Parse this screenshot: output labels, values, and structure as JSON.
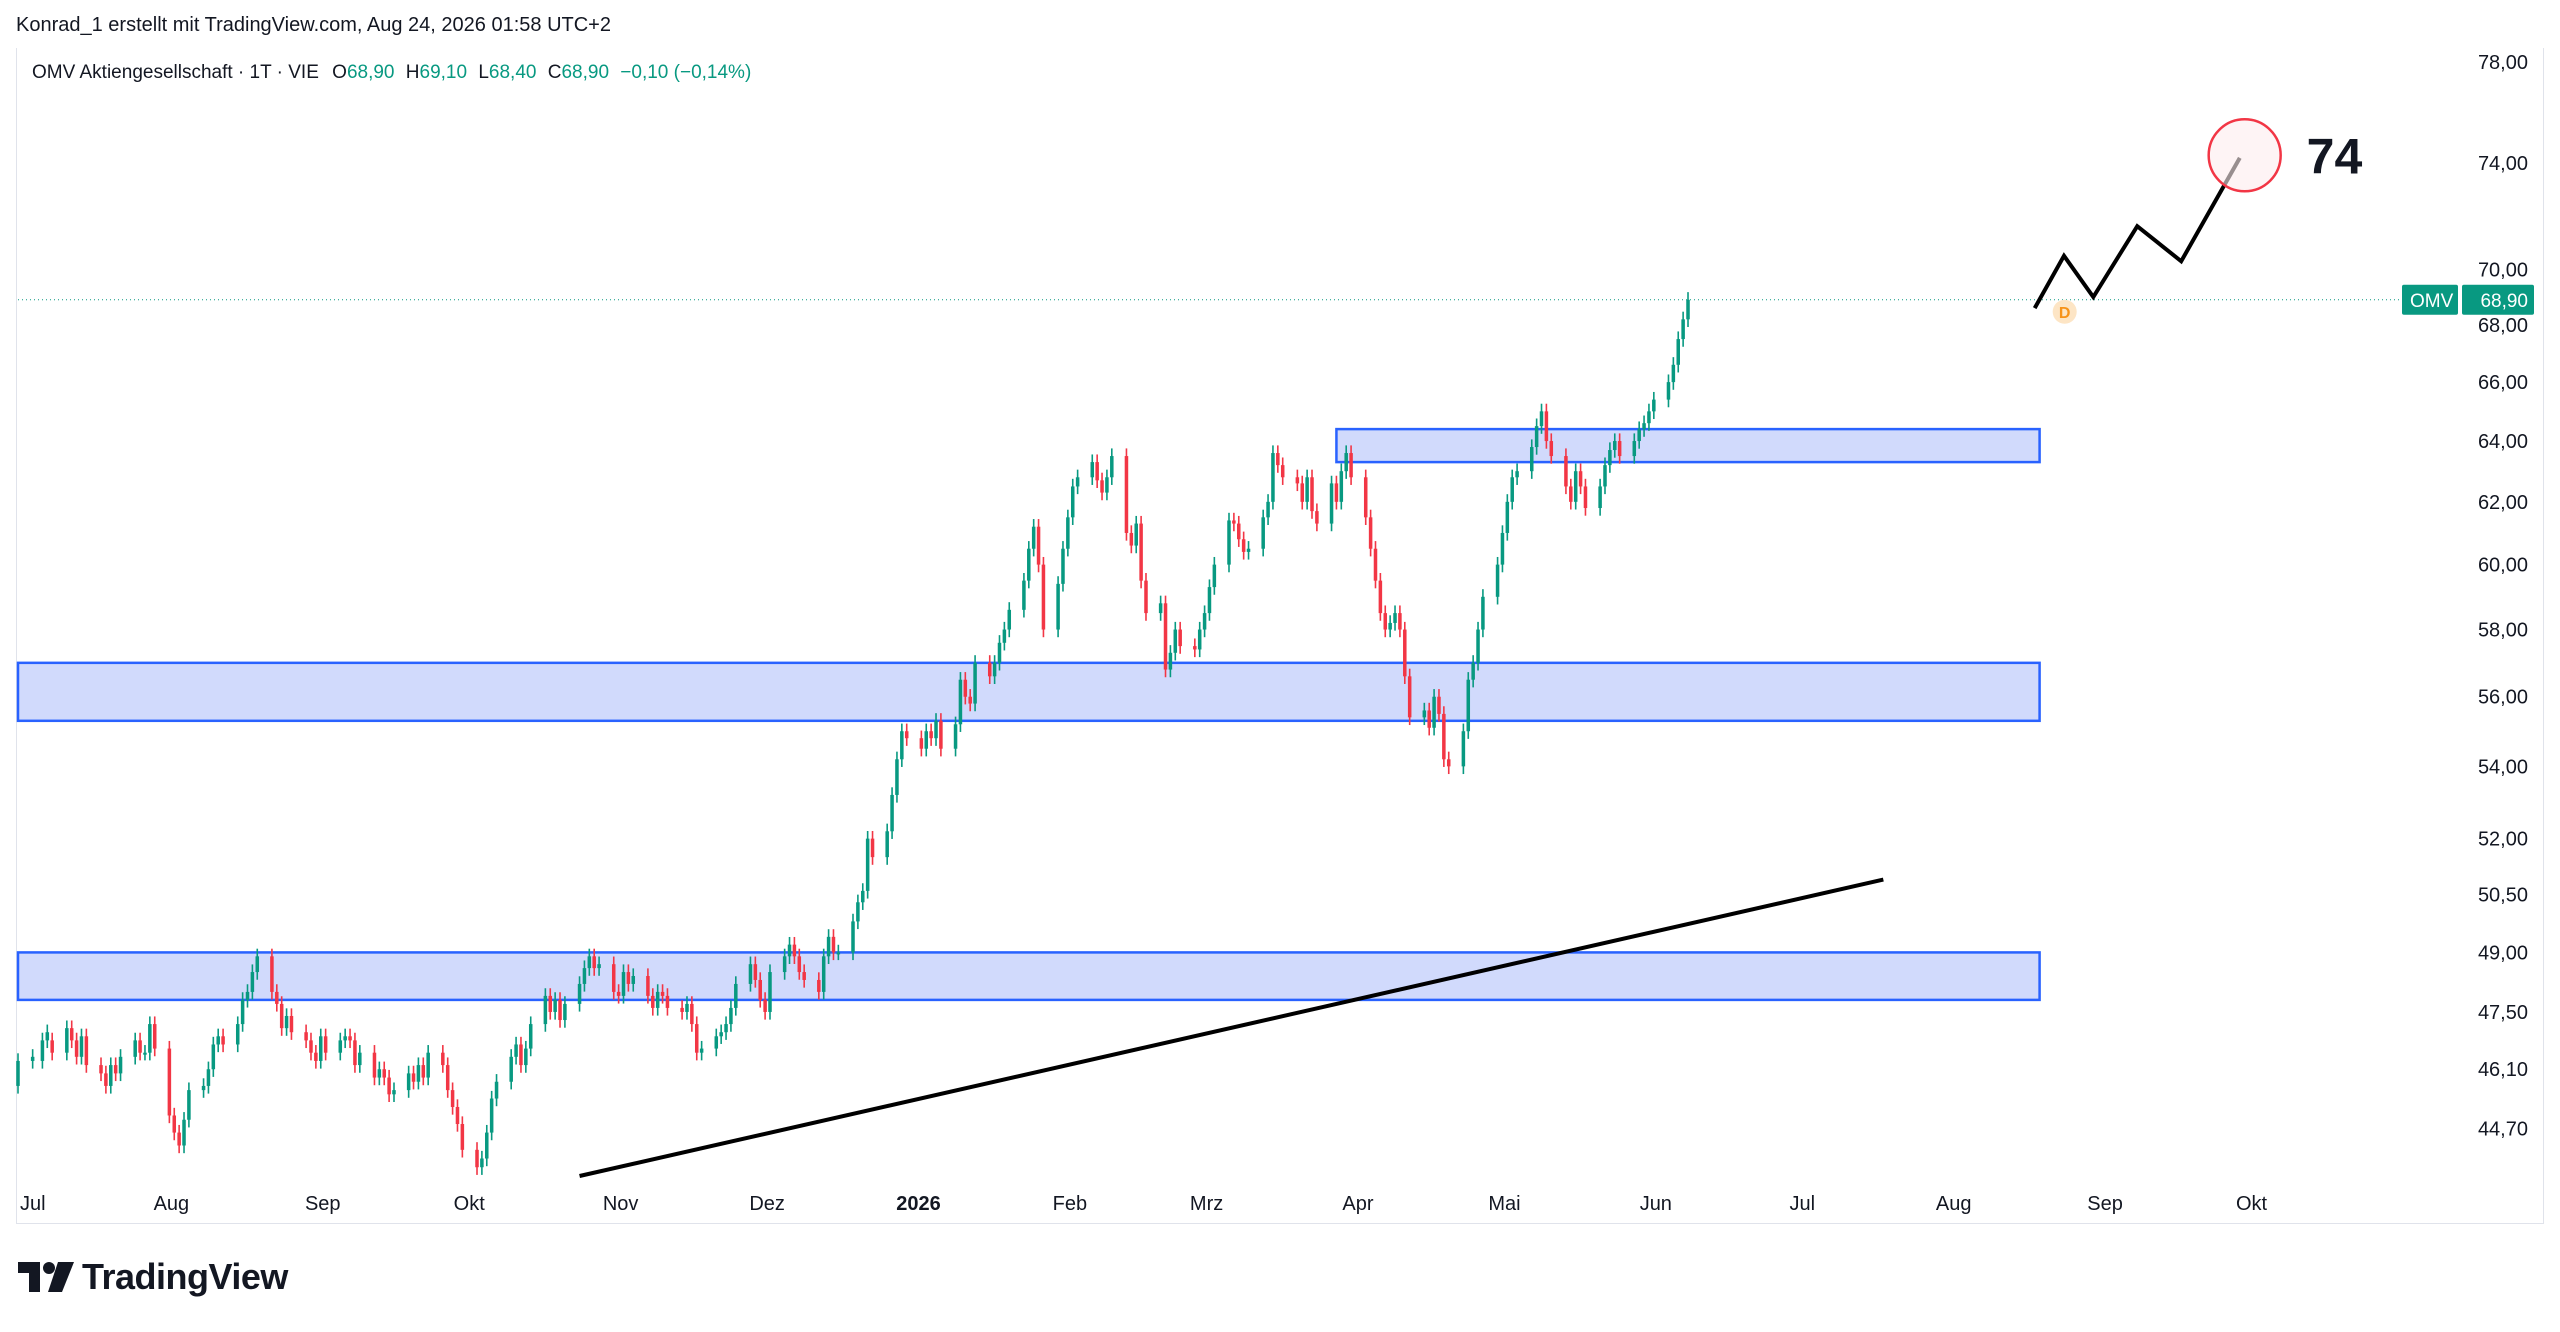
{
  "header": {
    "attribution": "Konrad_1 erstellt mit TradingView.com, Aug 24, 2026 01:58 UTC+2"
  },
  "legend": {
    "symbol": "OMV Aktiengesellschaft · 1T · VIE",
    "o_label": "O",
    "o_value": "68,90",
    "h_label": "H",
    "h_value": "69,10",
    "l_label": "L",
    "l_value": "68,40",
    "c_label": "C",
    "c_value": "68,90",
    "change": "−0,10 (−0,14%)"
  },
  "price_tag": {
    "symbol": "OMV",
    "value": "68,90"
  },
  "annotation": {
    "target_text": "74"
  },
  "brand": {
    "name": "TradingView"
  },
  "colors": {
    "up": "#089981",
    "down": "#f23645",
    "zone_fill": "#c9d4fb",
    "zone_stroke": "#2962ff",
    "trend": "#000000",
    "target_circle": "#f23645"
  },
  "chart_data": {
    "type": "candlestick",
    "scale": "log",
    "ylim": [
      43.6,
      78.5
    ],
    "y_ticks": [
      {
        "v": 78.0,
        "label": "78,00"
      },
      {
        "v": 74.0,
        "label": "74,00"
      },
      {
        "v": 70.0,
        "label": "70,00"
      },
      {
        "v": 68.0,
        "label": "68,00"
      },
      {
        "v": 66.0,
        "label": "66,00"
      },
      {
        "v": 64.0,
        "label": "64,00"
      },
      {
        "v": 62.0,
        "label": "62,00"
      },
      {
        "v": 60.0,
        "label": "60,00"
      },
      {
        "v": 58.0,
        "label": "58,00"
      },
      {
        "v": 56.0,
        "label": "56,00"
      },
      {
        "v": 54.0,
        "label": "54,00"
      },
      {
        "v": 52.0,
        "label": "52,00"
      },
      {
        "v": 50.5,
        "label": "50,50"
      },
      {
        "v": 49.0,
        "label": "49,00"
      },
      {
        "v": 47.5,
        "label": "47,50"
      },
      {
        "v": 46.1,
        "label": "46,10"
      },
      {
        "v": 44.7,
        "label": "44,70"
      }
    ],
    "x_ticks": [
      {
        "d": 0,
        "label": "Jul"
      },
      {
        "d": 31,
        "label": "Aug"
      },
      {
        "d": 62,
        "label": "Sep"
      },
      {
        "d": 92,
        "label": "Okt"
      },
      {
        "d": 123,
        "label": "Nov"
      },
      {
        "d": 153,
        "label": "Dez"
      },
      {
        "d": 184,
        "label": "2026",
        "bold": true
      },
      {
        "d": 215,
        "label": "Feb"
      },
      {
        "d": 243,
        "label": "Mrz"
      },
      {
        "d": 274,
        "label": "Apr"
      },
      {
        "d": 304,
        "label": "Mai"
      },
      {
        "d": 335,
        "label": "Jun"
      },
      {
        "d": 365,
        "label": "Jul"
      },
      {
        "d": 396,
        "label": "Aug"
      },
      {
        "d": 427,
        "label": "Sep"
      },
      {
        "d": 457,
        "label": "Okt"
      }
    ],
    "x_domain": [
      0,
      496
    ],
    "zones": [
      {
        "d0": 0,
        "d1": 414,
        "lo": 55.3,
        "hi": 57.0
      },
      {
        "d0": 0,
        "d1": 414,
        "lo": 47.8,
        "hi": 49.0
      },
      {
        "d0": 270,
        "d1": 414,
        "lo": 63.3,
        "hi": 64.4
      }
    ],
    "trend_line": [
      {
        "d": 115,
        "v": 43.6
      },
      {
        "d": 382,
        "v": 50.9
      }
    ],
    "projection": [
      {
        "d": 413,
        "v": 68.6
      },
      {
        "d": 419,
        "v": 70.5
      },
      {
        "d": 425,
        "v": 69.0
      },
      {
        "d": 434,
        "v": 71.6
      },
      {
        "d": 443,
        "v": 70.3
      },
      {
        "d": 455,
        "v": 74.2
      }
    ],
    "target_circle": {
      "d": 456,
      "v": 74.3
    },
    "current_price": 68.9,
    "candles": [
      [
        0,
        45.7,
        46.3
      ],
      [
        3,
        46.3,
        46.4
      ],
      [
        5,
        46.3,
        46.8
      ],
      [
        6,
        46.8,
        47.0
      ],
      [
        7,
        46.8,
        46.5
      ],
      [
        10,
        46.5,
        47.1
      ],
      [
        11,
        47.1,
        46.8
      ],
      [
        12,
        46.8,
        46.4
      ],
      [
        13,
        46.4,
        46.9
      ],
      [
        14,
        46.9,
        46.2
      ],
      [
        17,
        46.2,
        46.0
      ],
      [
        18,
        46.0,
        45.7
      ],
      [
        19,
        45.7,
        46.2
      ],
      [
        20,
        46.2,
        46.0
      ],
      [
        21,
        46.0,
        46.4
      ],
      [
        24,
        46.4,
        46.8
      ],
      [
        25,
        46.8,
        46.5
      ],
      [
        26,
        46.5,
        46.5
      ],
      [
        27,
        46.5,
        47.2
      ],
      [
        28,
        47.2,
        46.6
      ],
      [
        31,
        46.6,
        45.0
      ],
      [
        32,
        45.0,
        44.6
      ],
      [
        33,
        44.6,
        44.3
      ],
      [
        34,
        44.3,
        44.9
      ],
      [
        35,
        44.9,
        45.6
      ],
      [
        38,
        45.6,
        45.7
      ],
      [
        39,
        45.7,
        46.1
      ],
      [
        40,
        46.1,
        46.7
      ],
      [
        41,
        46.7,
        46.9
      ],
      [
        42,
        46.9,
        46.7
      ],
      [
        45,
        46.7,
        47.2
      ],
      [
        46,
        47.2,
        47.8
      ],
      [
        47,
        47.8,
        48.0
      ],
      [
        48,
        48.0,
        48.5
      ],
      [
        49,
        48.5,
        48.9
      ],
      [
        52,
        48.9,
        48.0
      ],
      [
        53,
        48.0,
        47.7
      ],
      [
        54,
        47.7,
        47.1
      ],
      [
        55,
        47.1,
        47.4
      ],
      [
        56,
        47.4,
        47.0
      ],
      [
        59,
        47.0,
        46.8
      ],
      [
        60,
        46.8,
        46.5
      ],
      [
        61,
        46.5,
        46.3
      ],
      [
        62,
        46.3,
        46.9
      ],
      [
        63,
        46.9,
        46.5
      ],
      [
        66,
        46.5,
        46.8
      ],
      [
        67,
        46.8,
        46.9
      ],
      [
        68,
        46.9,
        46.8
      ],
      [
        69,
        46.8,
        46.2
      ],
      [
        70,
        46.2,
        46.5
      ],
      [
        73,
        46.5,
        45.9
      ],
      [
        74,
        45.9,
        46.1
      ],
      [
        75,
        46.1,
        45.9
      ],
      [
        76,
        45.9,
        45.5
      ],
      [
        77,
        45.5,
        45.6
      ],
      [
        80,
        45.6,
        46.0
      ],
      [
        81,
        46.0,
        45.8
      ],
      [
        82,
        45.8,
        46.2
      ],
      [
        83,
        46.2,
        45.9
      ],
      [
        84,
        45.9,
        46.5
      ],
      [
        87,
        46.5,
        46.2
      ],
      [
        88,
        46.2,
        45.6
      ],
      [
        89,
        45.6,
        45.2
      ],
      [
        90,
        45.2,
        44.8
      ],
      [
        91,
        44.8,
        44.2
      ],
      [
        94,
        44.2,
        43.8
      ],
      [
        95,
        43.8,
        44.0
      ],
      [
        96,
        44.0,
        44.6
      ],
      [
        97,
        44.6,
        45.4
      ],
      [
        98,
        45.4,
        45.8
      ],
      [
        101,
        45.8,
        46.4
      ],
      [
        102,
        46.4,
        46.7
      ],
      [
        103,
        46.7,
        46.2
      ],
      [
        104,
        46.2,
        46.6
      ],
      [
        105,
        46.6,
        47.2
      ],
      [
        108,
        47.2,
        47.9
      ],
      [
        109,
        47.9,
        47.5
      ],
      [
        110,
        47.5,
        47.8
      ],
      [
        111,
        47.8,
        47.3
      ],
      [
        112,
        47.3,
        47.7
      ],
      [
        115,
        47.7,
        48.2
      ],
      [
        116,
        48.2,
        48.6
      ],
      [
        117,
        48.6,
        48.9
      ],
      [
        118,
        48.9,
        48.6
      ],
      [
        119,
        48.6,
        48.7
      ],
      [
        122,
        48.7,
        48.0
      ],
      [
        123,
        48.0,
        47.9
      ],
      [
        124,
        47.9,
        48.5
      ],
      [
        125,
        48.5,
        48.2
      ],
      [
        126,
        48.2,
        48.4
      ],
      [
        129,
        48.4,
        47.9
      ],
      [
        130,
        47.9,
        47.6
      ],
      [
        131,
        47.6,
        48.0
      ],
      [
        132,
        48.0,
        47.9
      ],
      [
        133,
        47.9,
        47.6
      ],
      [
        136,
        47.6,
        47.5
      ],
      [
        137,
        47.5,
        47.7
      ],
      [
        138,
        47.7,
        47.2
      ],
      [
        139,
        47.2,
        46.5
      ],
      [
        140,
        46.5,
        46.6
      ],
      [
        143,
        46.6,
        46.9
      ],
      [
        144,
        46.9,
        47.0
      ],
      [
        145,
        47.0,
        47.2
      ],
      [
        146,
        47.2,
        47.6
      ],
      [
        147,
        47.6,
        48.2
      ],
      [
        150,
        48.2,
        48.7
      ],
      [
        151,
        48.7,
        48.3
      ],
      [
        152,
        48.3,
        47.8
      ],
      [
        153,
        47.8,
        47.5
      ],
      [
        154,
        47.5,
        48.5
      ],
      [
        157,
        48.5,
        48.9
      ],
      [
        158,
        48.9,
        49.2
      ],
      [
        159,
        49.2,
        48.9
      ],
      [
        160,
        48.9,
        48.5
      ],
      [
        161,
        48.5,
        48.3
      ],
      [
        164,
        48.3,
        48.0
      ],
      [
        165,
        48.0,
        48.9
      ],
      [
        166,
        48.9,
        49.4
      ],
      [
        167,
        49.4,
        49.0
      ],
      [
        168,
        49.0,
        49.0
      ],
      [
        171,
        49.0,
        49.8
      ],
      [
        172,
        49.8,
        50.3
      ],
      [
        173,
        50.3,
        50.6
      ],
      [
        174,
        50.6,
        52.0
      ],
      [
        175,
        52.0,
        51.5
      ],
      [
        178,
        51.5,
        52.2
      ],
      [
        179,
        52.2,
        53.2
      ],
      [
        180,
        53.2,
        54.2
      ],
      [
        181,
        54.2,
        55.0
      ],
      [
        182,
        55.0,
        54.8
      ],
      [
        185,
        54.8,
        54.5
      ],
      [
        186,
        54.5,
        55.0
      ],
      [
        187,
        55.0,
        54.8
      ],
      [
        188,
        54.8,
        55.3
      ],
      [
        189,
        55.3,
        54.5
      ],
      [
        192,
        54.5,
        55.2
      ],
      [
        193,
        55.2,
        56.5
      ],
      [
        194,
        56.5,
        56.0
      ],
      [
        195,
        56.0,
        55.8
      ],
      [
        196,
        55.8,
        57.0
      ],
      [
        199,
        57.0,
        56.6
      ],
      [
        200,
        56.6,
        57.0
      ],
      [
        201,
        57.0,
        57.6
      ],
      [
        202,
        57.6,
        58.0
      ],
      [
        203,
        58.0,
        58.6
      ],
      [
        206,
        58.6,
        59.5
      ],
      [
        207,
        59.5,
        60.5
      ],
      [
        208,
        60.5,
        61.2
      ],
      [
        209,
        61.2,
        60.0
      ],
      [
        210,
        60.0,
        58.0
      ],
      [
        213,
        58.0,
        59.4
      ],
      [
        214,
        59.4,
        60.5
      ],
      [
        215,
        60.5,
        61.5
      ],
      [
        216,
        61.5,
        62.5
      ],
      [
        217,
        62.5,
        62.8
      ],
      [
        220,
        62.8,
        63.3
      ],
      [
        221,
        63.3,
        62.7
      ],
      [
        222,
        62.7,
        62.3
      ],
      [
        223,
        62.3,
        62.8
      ],
      [
        224,
        62.8,
        63.5
      ],
      [
        227,
        63.5,
        61.0
      ],
      [
        228,
        61.0,
        60.6
      ],
      [
        229,
        60.6,
        61.3
      ],
      [
        230,
        61.3,
        59.5
      ],
      [
        231,
        59.5,
        58.5
      ],
      [
        234,
        58.5,
        58.8
      ],
      [
        235,
        58.8,
        56.8
      ],
      [
        236,
        56.8,
        57.3
      ],
      [
        237,
        57.3,
        58.0
      ],
      [
        238,
        58.0,
        57.5
      ],
      [
        241,
        57.5,
        57.4
      ],
      [
        242,
        57.4,
        58.0
      ],
      [
        243,
        58.0,
        58.5
      ],
      [
        244,
        58.5,
        59.3
      ],
      [
        245,
        59.3,
        60.0
      ],
      [
        248,
        60.0,
        61.4
      ],
      [
        249,
        61.4,
        61.3
      ],
      [
        250,
        61.3,
        60.8
      ],
      [
        251,
        60.8,
        60.4
      ],
      [
        252,
        60.4,
        60.5
      ],
      [
        255,
        60.5,
        61.5
      ],
      [
        256,
        61.5,
        62.0
      ],
      [
        257,
        62.0,
        63.6
      ],
      [
        258,
        63.6,
        63.2
      ],
      [
        259,
        63.2,
        62.8
      ],
      [
        262,
        62.8,
        62.6
      ],
      [
        263,
        62.6,
        62.0
      ],
      [
        264,
        62.0,
        62.8
      ],
      [
        265,
        62.8,
        61.7
      ],
      [
        266,
        61.7,
        61.3
      ],
      [
        269,
        61.3,
        62.6
      ],
      [
        270,
        62.6,
        62.0
      ],
      [
        271,
        62.0,
        63.0
      ],
      [
        272,
        63.0,
        63.6
      ],
      [
        273,
        63.6,
        62.8
      ],
      [
        276,
        62.8,
        61.5
      ],
      [
        277,
        61.5,
        60.5
      ],
      [
        278,
        60.5,
        59.5
      ],
      [
        279,
        59.5,
        58.5
      ],
      [
        280,
        58.5,
        58.0
      ],
      [
        281,
        58.0,
        58.2
      ],
      [
        282,
        58.2,
        58.5
      ],
      [
        283,
        58.5,
        58.0
      ],
      [
        284,
        58.0,
        56.6
      ],
      [
        285,
        56.6,
        55.4
      ],
      [
        288,
        55.4,
        55.6
      ],
      [
        289,
        55.6,
        55.1
      ],
      [
        290,
        55.1,
        56.0
      ],
      [
        291,
        56.0,
        55.5
      ],
      [
        292,
        55.5,
        54.2
      ],
      [
        293,
        54.2,
        54.0
      ],
      [
        296,
        54.0,
        55.0
      ],
      [
        297,
        55.0,
        56.5
      ],
      [
        298,
        56.5,
        57.0
      ],
      [
        299,
        57.0,
        58.0
      ],
      [
        300,
        58.0,
        59.0
      ],
      [
        303,
        59.0,
        60.0
      ],
      [
        304,
        60.0,
        61.0
      ],
      [
        305,
        61.0,
        62.0
      ],
      [
        306,
        62.0,
        62.8
      ],
      [
        307,
        62.8,
        63.0
      ],
      [
        310,
        63.0,
        63.8
      ],
      [
        311,
        63.8,
        64.5
      ],
      [
        312,
        64.5,
        65.0
      ],
      [
        313,
        65.0,
        64.0
      ],
      [
        314,
        64.0,
        63.5
      ],
      [
        317,
        63.5,
        62.5
      ],
      [
        318,
        62.5,
        62.0
      ],
      [
        319,
        62.0,
        63.0
      ],
      [
        320,
        63.0,
        62.5
      ],
      [
        321,
        62.5,
        61.8
      ],
      [
        324,
        61.8,
        62.5
      ],
      [
        325,
        62.5,
        63.2
      ],
      [
        326,
        63.2,
        63.7
      ],
      [
        327,
        63.7,
        64.0
      ],
      [
        328,
        64.0,
        63.5
      ],
      [
        331,
        63.5,
        64.0
      ],
      [
        332,
        64.0,
        64.4
      ],
      [
        333,
        64.4,
        64.6
      ],
      [
        334,
        64.6,
        65.0
      ],
      [
        335,
        65.0,
        65.4
      ],
      [
        338,
        65.4,
        66.0
      ],
      [
        339,
        66.0,
        66.6
      ],
      [
        340,
        66.6,
        67.5
      ],
      [
        341,
        67.5,
        68.2
      ],
      [
        342,
        68.2,
        68.9
      ]
    ]
  }
}
